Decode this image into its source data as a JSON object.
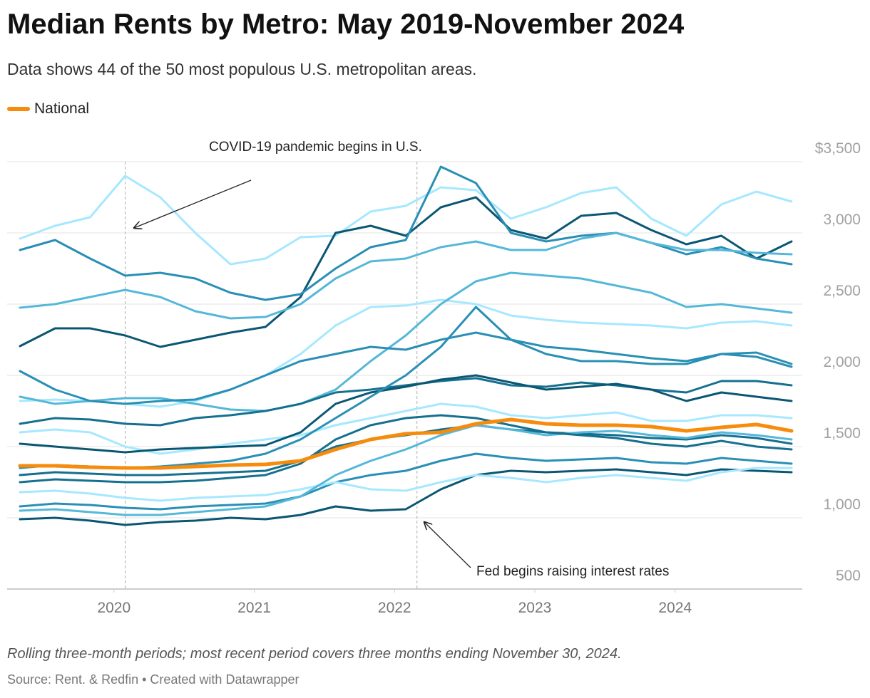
{
  "chart_data": {
    "type": "line",
    "title": "Median Rents by Metro: May 2019-November 2024",
    "subtitle": "Data shows 44 of the 50 most populous U.S. metropolitan areas.",
    "note": "Rolling three-month periods; most recent period covers three months ending November 30, 2024.",
    "source": "Source: Rent. & Redfin • Created with Datawrapper",
    "x": [
      2019.33,
      2019.58,
      2019.83,
      2020.08,
      2020.33,
      2020.58,
      2020.83,
      2021.08,
      2021.33,
      2021.58,
      2021.83,
      2022.08,
      2022.33,
      2022.58,
      2022.83,
      2023.08,
      2023.33,
      2023.58,
      2023.83,
      2024.08,
      2024.33,
      2024.58,
      2024.83
    ],
    "xlim": [
      2019.33,
      2024.83
    ],
    "xticks": [
      2020,
      2021,
      2022,
      2023,
      2024
    ],
    "ylim": [
      500,
      3500
    ],
    "yticks": [
      500,
      {
        "value": 1000,
        "label": "1,000"
      },
      {
        "value": 1500,
        "label": "1,500"
      },
      {
        "value": 2000,
        "label": "2,000"
      },
      {
        "value": 2500,
        "label": "2,500"
      },
      {
        "value": 3000,
        "label": "3,000"
      },
      {
        "value": 3500,
        "label": "$3,500"
      }
    ],
    "grid": true,
    "annotations": [
      {
        "text": "COVID-19 pandemic begins in U.S.",
        "x": 2020.08
      },
      {
        "text": "Fed begins raising interest rates",
        "x": 2022.16
      }
    ],
    "series": [
      {
        "color": "#a6e8ff",
        "values": [
          2960,
          3050,
          3110,
          3400,
          3250,
          3000,
          2780,
          2820,
          2970,
          2980,
          3150,
          3190,
          3320,
          3300,
          3100,
          3180,
          3280,
          3320,
          3100,
          2980,
          3200,
          3290,
          3220
        ]
      },
      {
        "color": "#0b5773",
        "values": [
          2205,
          2330,
          2330,
          2280,
          2200,
          2250,
          2300,
          2340,
          2550,
          3000,
          3050,
          2980,
          3180,
          3250,
          3020,
          2960,
          3120,
          3140,
          3020,
          2920,
          2980,
          2820,
          2940
        ]
      },
      {
        "color": "#2a8fb5",
        "values": [
          2880,
          2950,
          2820,
          2700,
          2720,
          2680,
          2580,
          2530,
          2570,
          2750,
          2900,
          2950,
          3465,
          3350,
          3000,
          2940,
          2980,
          3000,
          2930,
          2850,
          2900,
          2820,
          2780
        ]
      },
      {
        "color": "#55b8d9",
        "values": [
          2475,
          2500,
          2550,
          2600,
          2550,
          2450,
          2400,
          2410,
          2500,
          2680,
          2800,
          2820,
          2900,
          2940,
          2880,
          2880,
          2960,
          3000,
          2930,
          2880,
          2880,
          2860,
          2850
        ]
      },
      {
        "color": "#a6e8ff",
        "values": [
          1820,
          1830,
          1820,
          1800,
          1780,
          1820,
          1900,
          2000,
          2150,
          2350,
          2480,
          2490,
          2530,
          2500,
          2420,
          2390,
          2370,
          2360,
          2350,
          2330,
          2370,
          2380,
          2350
        ]
      },
      {
        "color": "#55b8d9",
        "values": [
          1850,
          1800,
          1820,
          1840,
          1840,
          1800,
          1760,
          1750,
          1800,
          1900,
          2100,
          2280,
          2500,
          2660,
          2720,
          2700,
          2680,
          2630,
          2580,
          2480,
          2500,
          2470,
          2440
        ]
      },
      {
        "color": "#15708f",
        "values": [
          1660,
          1700,
          1690,
          1660,
          1650,
          1700,
          1720,
          1750,
          1800,
          1880,
          1900,
          1930,
          1960,
          1980,
          1930,
          1920,
          1950,
          1930,
          1900,
          1880,
          1960,
          1960,
          1930
        ]
      },
      {
        "color": "#2a8fb5",
        "values": [
          2030,
          1900,
          1820,
          1800,
          1820,
          1830,
          1900,
          2000,
          2100,
          2150,
          2200,
          2180,
          2250,
          2300,
          2250,
          2200,
          2180,
          2150,
          2120,
          2100,
          2150,
          2160,
          2080
        ]
      },
      {
        "color": "#a6e8ff",
        "values": [
          1600,
          1620,
          1600,
          1500,
          1450,
          1480,
          1520,
          1550,
          1580,
          1650,
          1700,
          1750,
          1800,
          1780,
          1720,
          1700,
          1720,
          1740,
          1680,
          1680,
          1720,
          1720,
          1700
        ]
      },
      {
        "color": "#0b5773",
        "values": [
          1520,
          1500,
          1480,
          1460,
          1480,
          1490,
          1500,
          1510,
          1600,
          1800,
          1880,
          1920,
          1970,
          2000,
          1950,
          1900,
          1920,
          1940,
          1900,
          1820,
          1880,
          1850,
          1820
        ]
      },
      {
        "color": "#15708f",
        "values": [
          1300,
          1320,
          1310,
          1300,
          1300,
          1310,
          1320,
          1330,
          1400,
          1500,
          1550,
          1580,
          1620,
          1650,
          1620,
          1600,
          1590,
          1580,
          1560,
          1550,
          1580,
          1560,
          1520
        ]
      },
      {
        "color": "#2a8fb5",
        "values": [
          1080,
          1100,
          1090,
          1070,
          1060,
          1080,
          1090,
          1100,
          1150,
          1250,
          1300,
          1330,
          1400,
          1450,
          1420,
          1400,
          1410,
          1420,
          1390,
          1380,
          1420,
          1400,
          1380
        ]
      },
      {
        "color": "#0b5773",
        "values": [
          990,
          1000,
          980,
          950,
          970,
          980,
          1000,
          990,
          1020,
          1080,
          1050,
          1060,
          1200,
          1300,
          1330,
          1320,
          1330,
          1340,
          1320,
          1300,
          1340,
          1330,
          1320
        ]
      },
      {
        "color": "#a6e8ff",
        "values": [
          1180,
          1190,
          1170,
          1140,
          1120,
          1140,
          1150,
          1160,
          1200,
          1250,
          1200,
          1190,
          1250,
          1300,
          1280,
          1250,
          1280,
          1300,
          1280,
          1260,
          1320,
          1350,
          1350
        ]
      },
      {
        "color": "#55b8d9",
        "values": [
          1050,
          1060,
          1040,
          1020,
          1020,
          1040,
          1060,
          1080,
          1150,
          1300,
          1400,
          1480,
          1580,
          1650,
          1620,
          1580,
          1600,
          1610,
          1580,
          1560,
          1600,
          1580,
          1550
        ]
      },
      {
        "color": "#15708f",
        "values": [
          1250,
          1270,
          1260,
          1250,
          1250,
          1260,
          1280,
          1300,
          1380,
          1550,
          1650,
          1700,
          1720,
          1700,
          1650,
          1600,
          1580,
          1560,
          1520,
          1500,
          1540,
          1500,
          1480
        ]
      },
      {
        "color": "#2a8fb5",
        "values": [
          1350,
          1370,
          1360,
          1350,
          1360,
          1380,
          1400,
          1450,
          1550,
          1700,
          1850,
          2000,
          2200,
          2480,
          2250,
          2150,
          2100,
          2100,
          2080,
          2080,
          2150,
          2130,
          2060
        ]
      },
      {
        "name": "National",
        "color": "#f78b0c",
        "values": [
          1365,
          1365,
          1355,
          1350,
          1350,
          1360,
          1370,
          1375,
          1400,
          1480,
          1550,
          1590,
          1600,
          1660,
          1690,
          1660,
          1650,
          1650,
          1640,
          1610,
          1635,
          1655,
          1610
        ]
      }
    ]
  }
}
